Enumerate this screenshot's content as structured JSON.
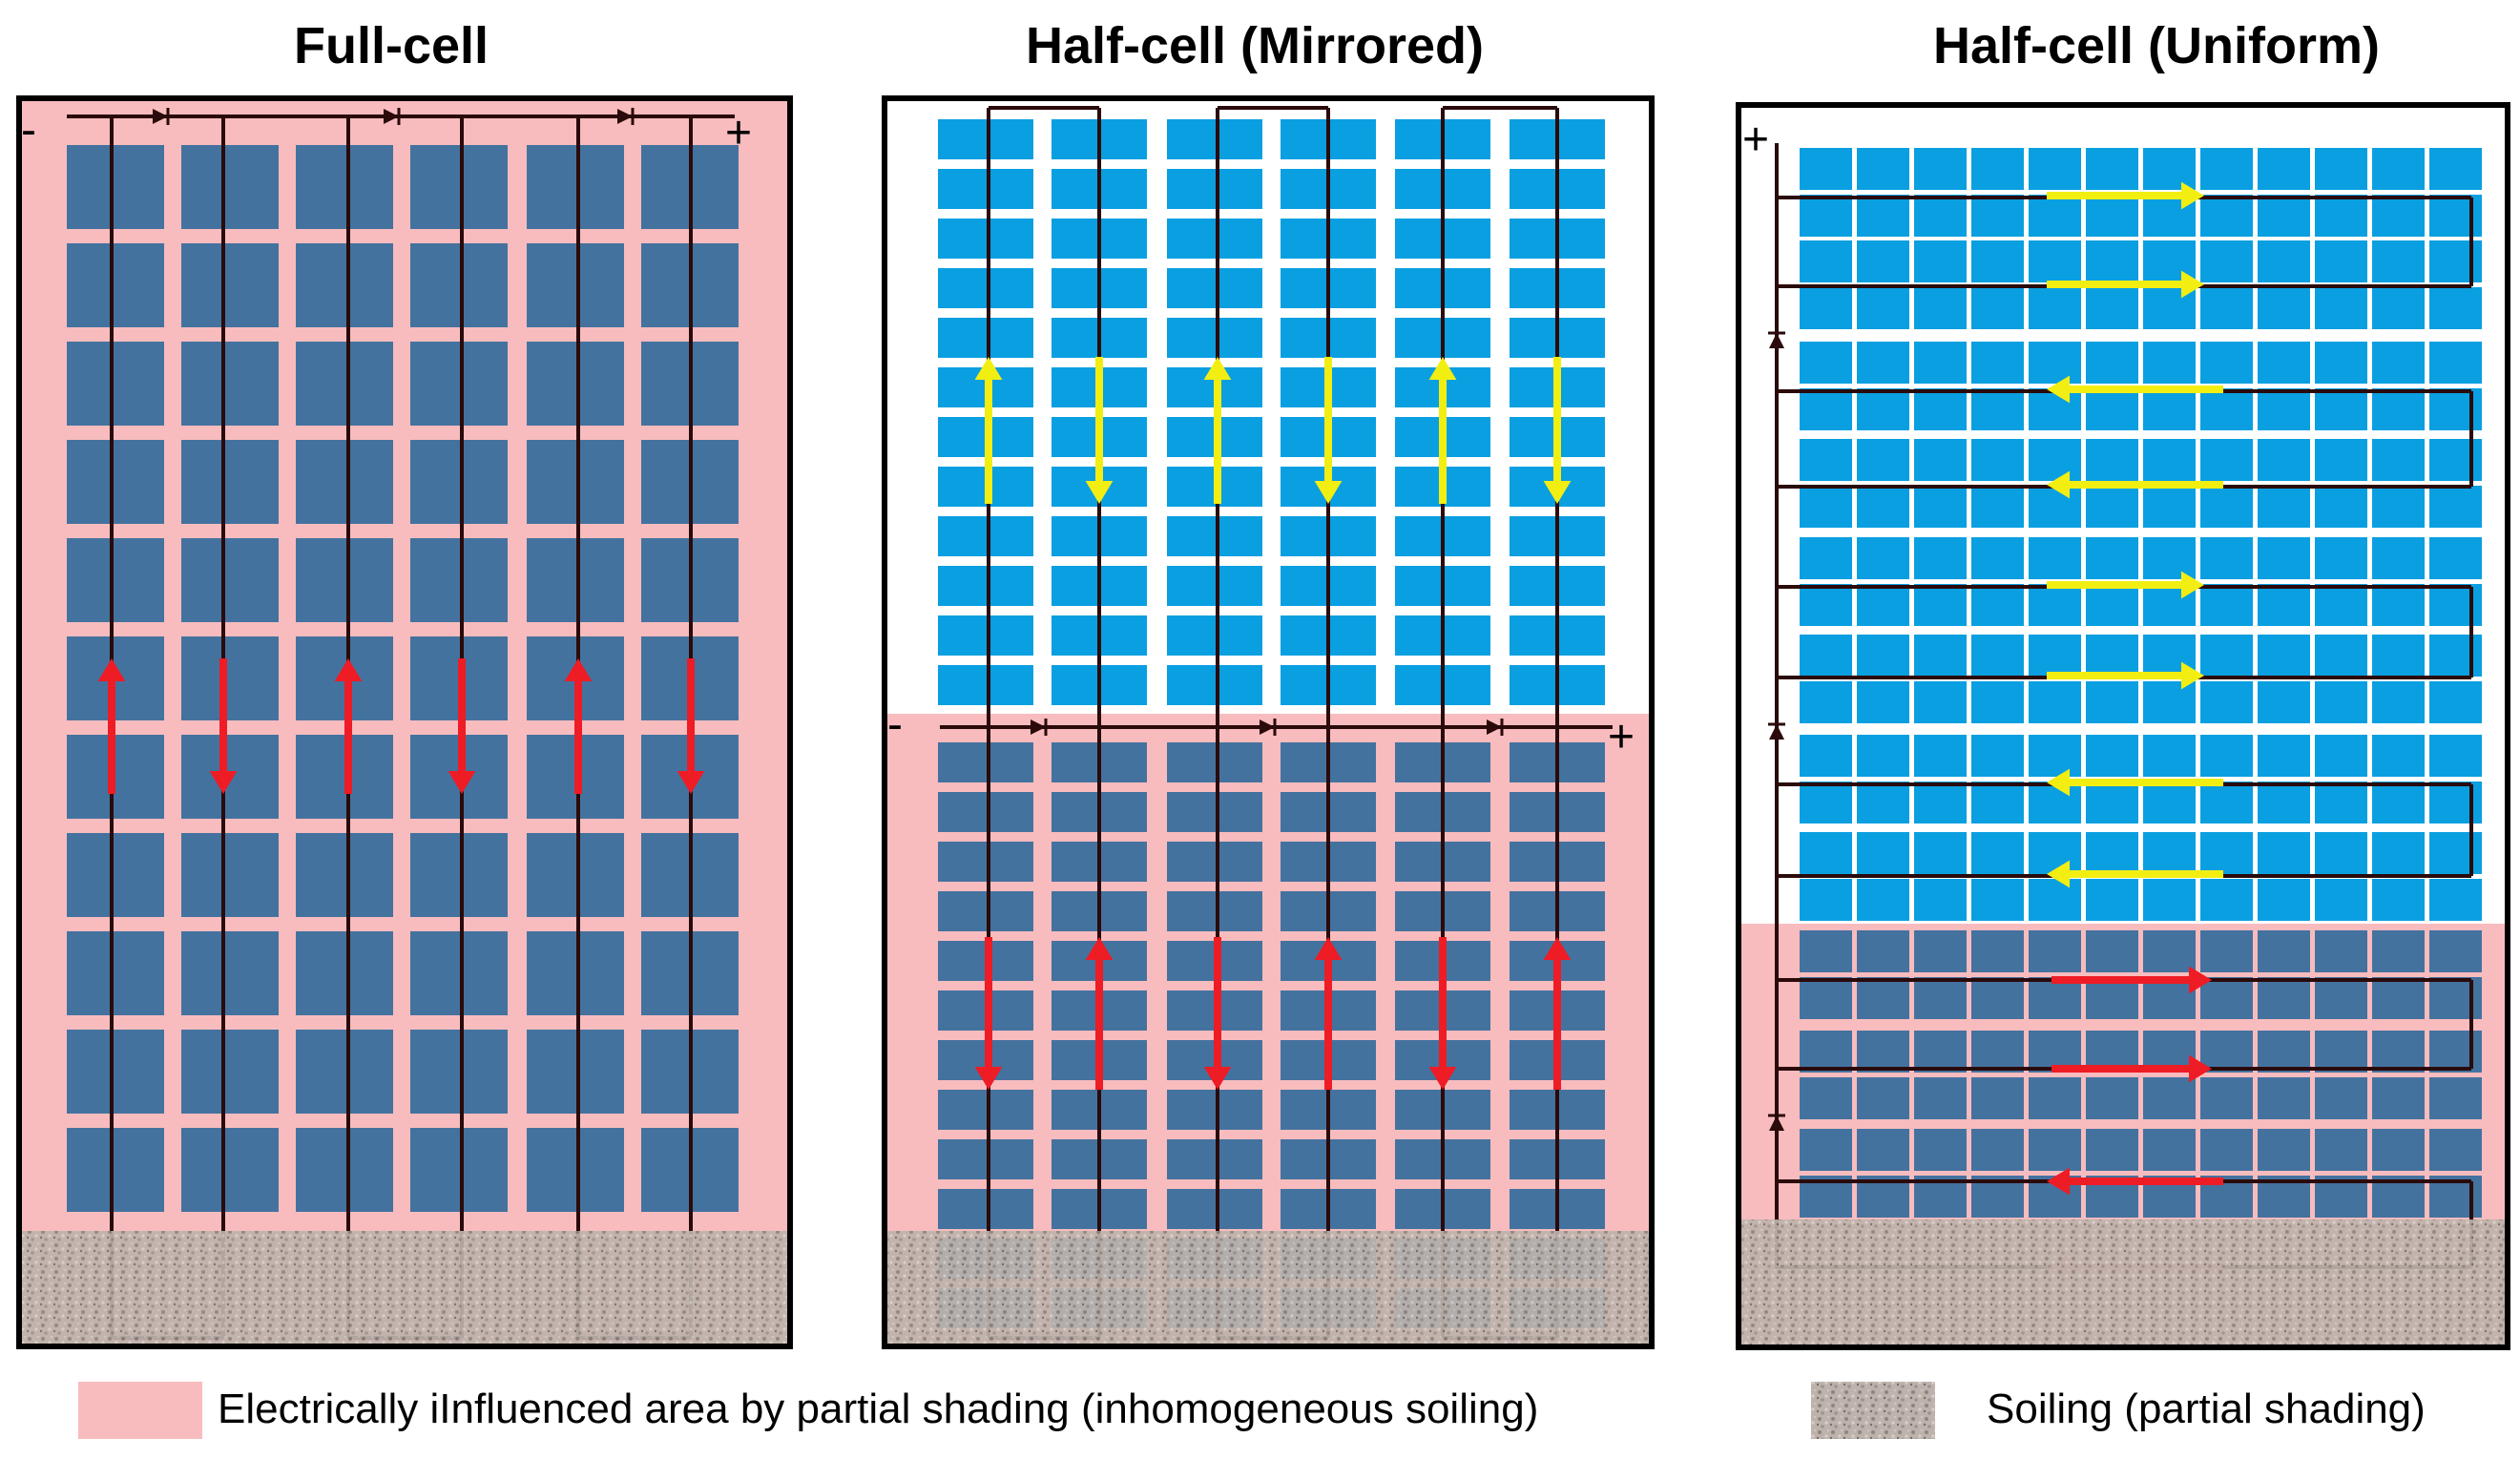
{
  "panels": [
    {
      "title": "Full-cell",
      "minus": "-",
      "plus": "+"
    },
    {
      "title": "Half-cell (Mirrored)",
      "minus": "-",
      "plus": "+"
    },
    {
      "title": "Half-cell (Uniform)",
      "minus": "",
      "plus": "+"
    }
  ],
  "legend": {
    "influenced_label": "Electrically iInfluenced area by partial shading (inhomogeneous soiling)",
    "soiling_label": "Soiling (partial shading)"
  },
  "colors": {
    "cell_dark": "#44729f",
    "cell_light": "#0a9fe0",
    "influenced_area": "#f8bcbe",
    "arrow_red": "#ee1c25",
    "arrow_yellow": "#f2ee12",
    "wire": "#2a0a0a",
    "soiling": "#b8ada6"
  }
}
